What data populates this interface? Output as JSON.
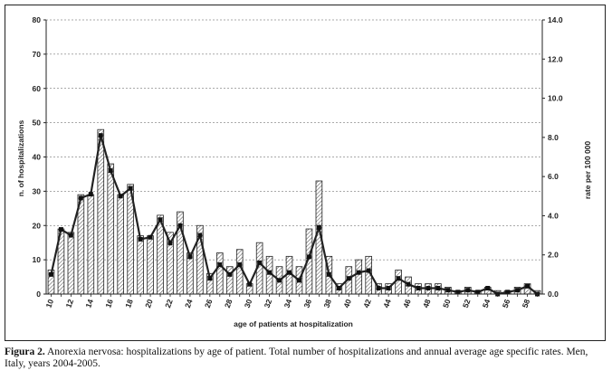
{
  "caption": {
    "label": "Figura 2.",
    "text": "Anorexia nervosa: hospitalizations by age of patient. Total number of hospitalizations and annual average age specific rates. Men, Italy, years 2004-2005."
  },
  "chart_data": {
    "type": "bar",
    "xlabel": "age of patients at hospitalization",
    "ylabel": "n. of hospitalizations",
    "y2label": "rate per 100 000",
    "ylim": [
      0,
      80
    ],
    "y2lim": [
      0,
      14
    ],
    "yticks": [
      "0",
      "10",
      "20",
      "30",
      "40",
      "50",
      "60",
      "70",
      "80"
    ],
    "y2ticks": [
      "0.0",
      "2.0",
      "4.0",
      "6.0",
      "8.0",
      "10.0",
      "12.0",
      "14.0"
    ],
    "xticks": [
      "10",
      "12",
      "14",
      "16",
      "18",
      "20",
      "22",
      "24",
      "26",
      "28",
      "30",
      "32",
      "34",
      "36",
      "38",
      "40",
      "42",
      "44",
      "46",
      "48",
      "50",
      "52",
      "54",
      "56",
      "58"
    ],
    "grid": true,
    "categories": [
      10,
      11,
      12,
      13,
      14,
      15,
      16,
      17,
      18,
      19,
      20,
      21,
      22,
      23,
      24,
      25,
      26,
      27,
      28,
      29,
      30,
      31,
      32,
      33,
      34,
      35,
      36,
      37,
      38,
      39,
      40,
      41,
      42,
      43,
      44,
      45,
      46,
      47,
      48,
      49,
      50,
      51,
      52,
      53,
      54,
      55,
      56,
      57,
      58,
      59
    ],
    "series": [
      {
        "kind": "bar",
        "axis": "left",
        "values": [
          7,
          19,
          18,
          29,
          29,
          48,
          38,
          29,
          32,
          17,
          17,
          23,
          18,
          24,
          12,
          20,
          6,
          12,
          8,
          13,
          3,
          15,
          11,
          8,
          11,
          8,
          19,
          33,
          11,
          3,
          8,
          10,
          11,
          3,
          3,
          7,
          5,
          3,
          3,
          3,
          2,
          1,
          2,
          1,
          2,
          1,
          1,
          2,
          3,
          1
        ]
      },
      {
        "kind": "line",
        "axis": "right",
        "values": [
          1.0,
          3.3,
          3.0,
          4.9,
          5.1,
          8.1,
          6.3,
          5.0,
          5.4,
          2.8,
          2.9,
          3.8,
          2.6,
          3.5,
          1.9,
          3.0,
          0.8,
          1.5,
          1.0,
          1.5,
          0.5,
          1.6,
          1.1,
          0.7,
          1.1,
          0.7,
          1.9,
          3.4,
          1.0,
          0.3,
          0.8,
          1.1,
          1.2,
          0.3,
          0.3,
          0.8,
          0.5,
          0.3,
          0.3,
          0.3,
          0.2,
          0.1,
          0.2,
          0.1,
          0.3,
          0.0,
          0.1,
          0.2,
          0.4,
          0.0
        ]
      }
    ]
  }
}
